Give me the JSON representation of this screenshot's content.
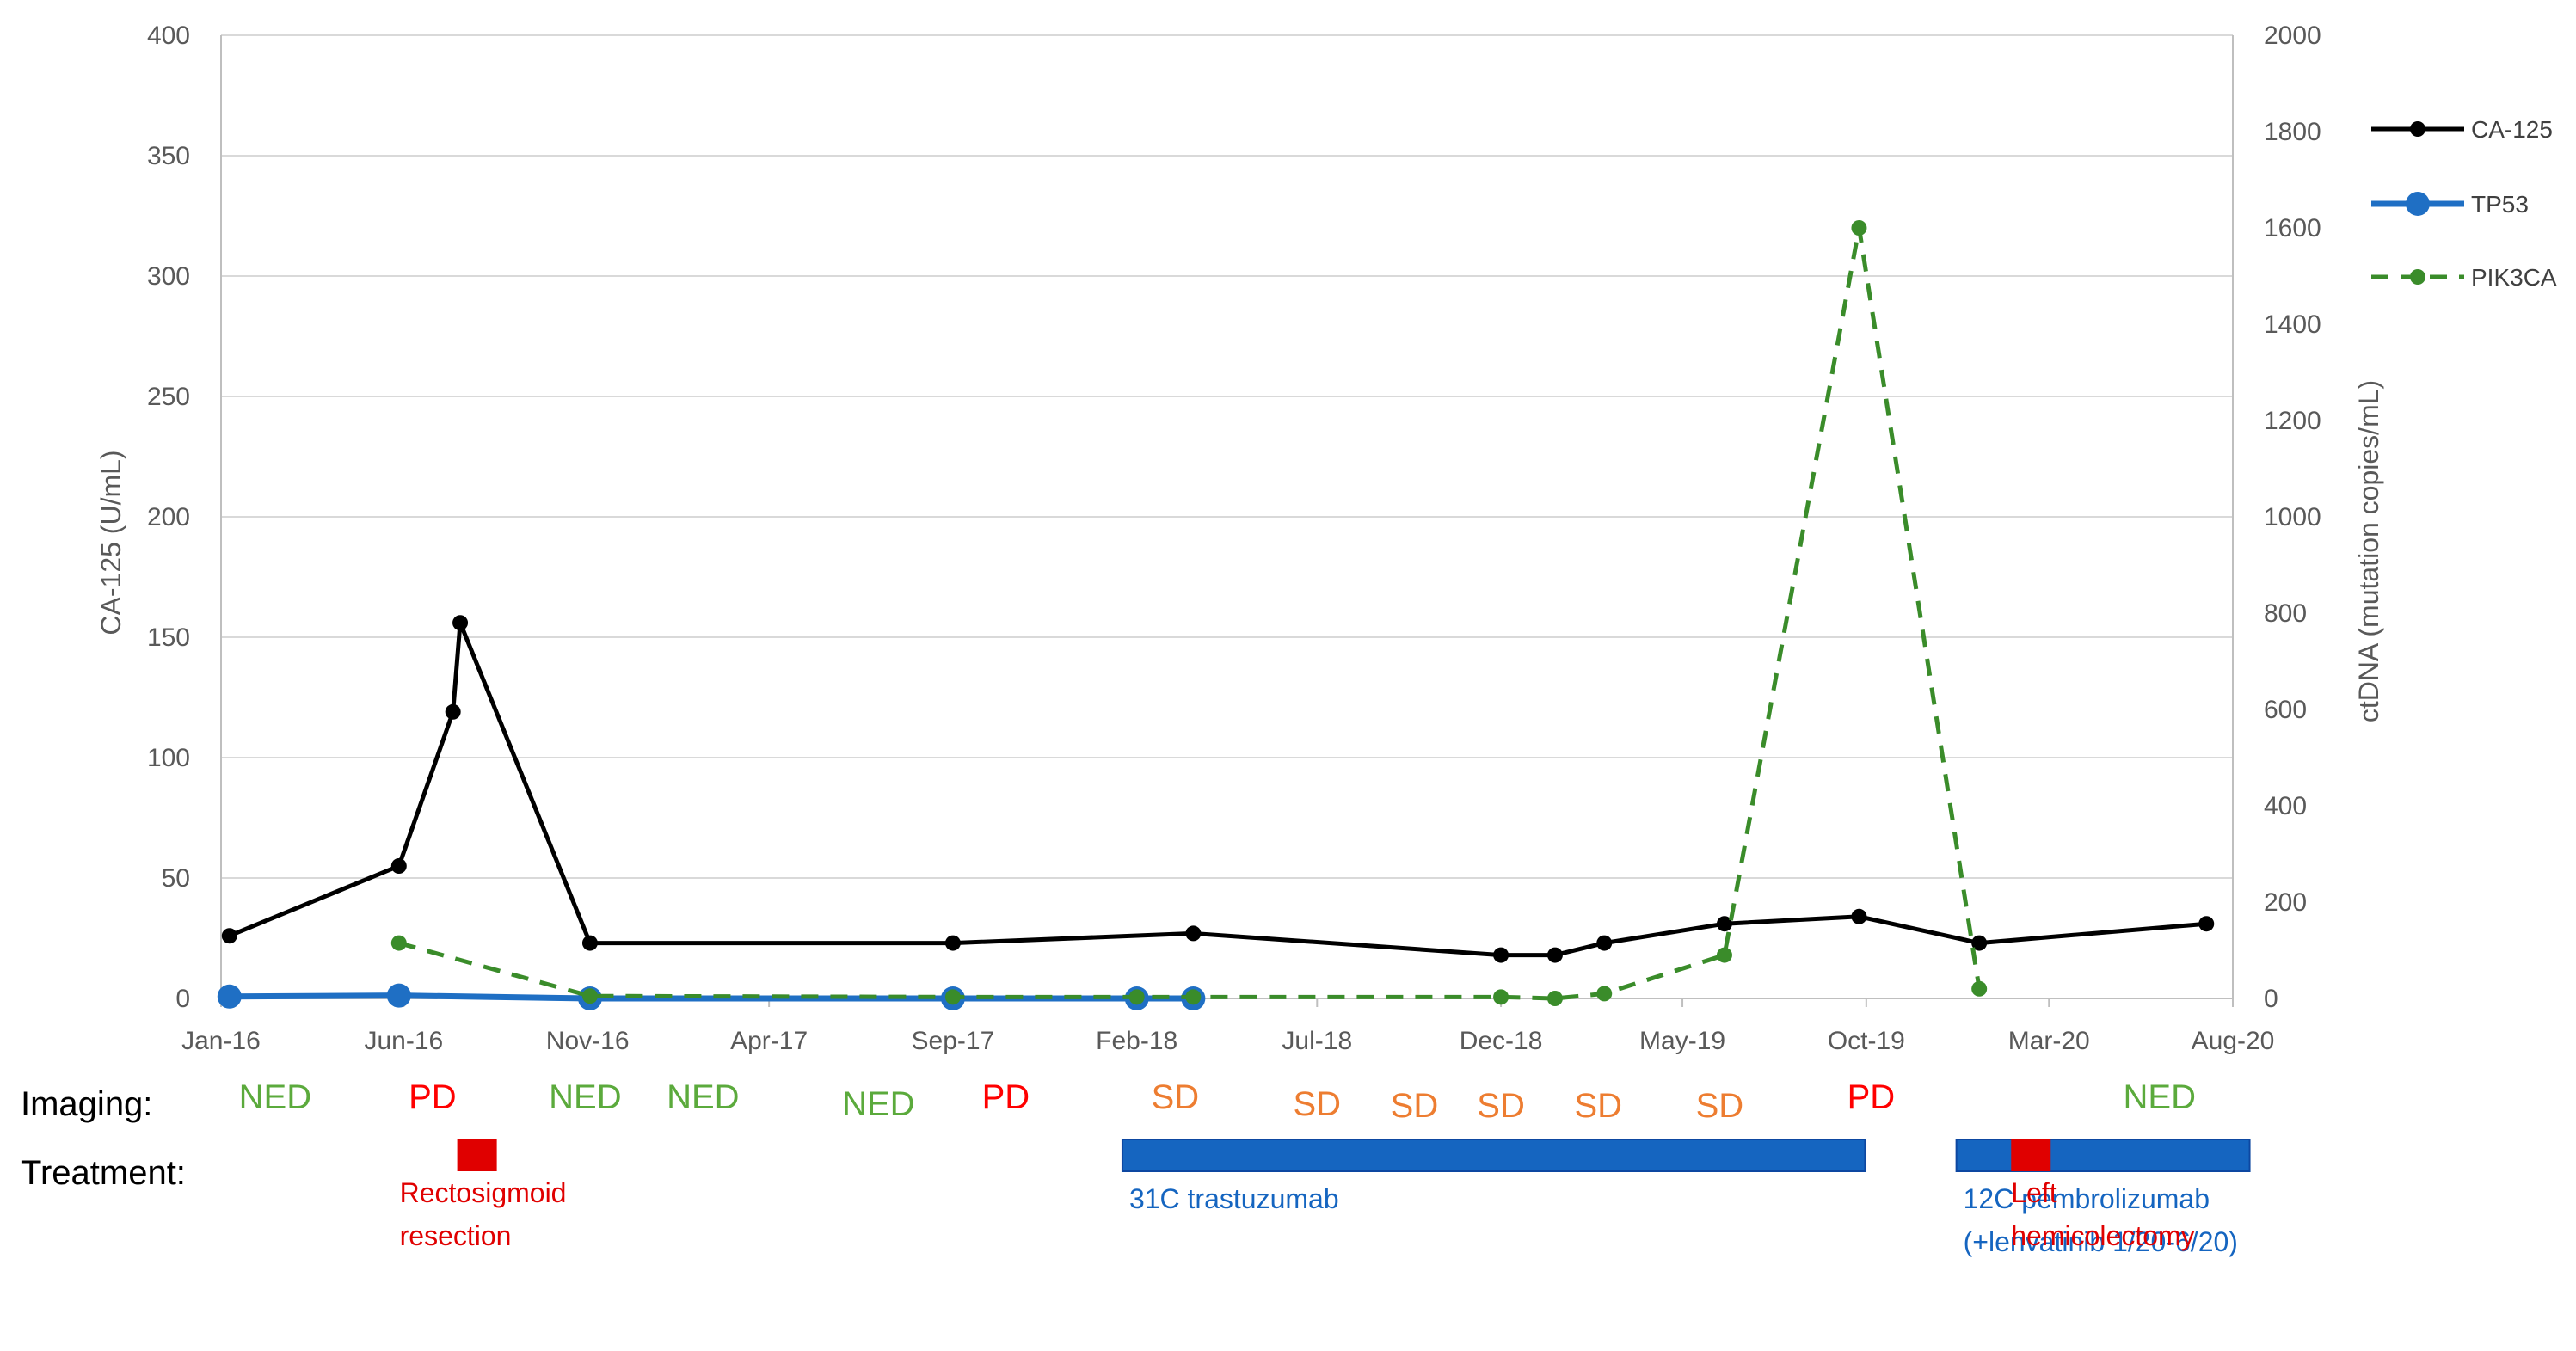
{
  "colors": {
    "ca125": "#000000",
    "tp53": "#1F6FC4",
    "pik3ca": "#3A8C2A",
    "grid": "#D9D9D9",
    "axis_text": "#595959",
    "ned": "#5BAA3C",
    "pd": "#FF0000",
    "sd": "#ED7D31",
    "treatment_bar": "#1565C0",
    "surgery": "#E00000"
  },
  "chart_data": {
    "type": "line",
    "title": "",
    "xlabel": "",
    "ylabel": "CA-125 (U/mL)",
    "y2label": "ctDNA (mutation copies/mL)",
    "ylim": [
      0,
      400
    ],
    "y2lim": [
      0,
      2000
    ],
    "yticks": [
      0,
      50,
      100,
      150,
      200,
      250,
      300,
      350,
      400
    ],
    "y2ticks": [
      0,
      200,
      400,
      600,
      800,
      1000,
      1200,
      1400,
      1600,
      1800,
      2000
    ],
    "xlim": [
      "2016-01-01",
      "2020-08-01"
    ],
    "xticks": [
      {
        "date": "2016-01-01",
        "label": "Jan-16"
      },
      {
        "date": "2016-06-01",
        "label": "Jun-16"
      },
      {
        "date": "2016-11-01",
        "label": "Nov-16"
      },
      {
        "date": "2017-04-01",
        "label": "Apr-17"
      },
      {
        "date": "2017-09-01",
        "label": "Sep-17"
      },
      {
        "date": "2018-02-01",
        "label": "Feb-18"
      },
      {
        "date": "2018-07-01",
        "label": "Jul-18"
      },
      {
        "date": "2018-12-01",
        "label": "Dec-18"
      },
      {
        "date": "2019-05-01",
        "label": "May-19"
      },
      {
        "date": "2019-10-01",
        "label": "Oct-19"
      },
      {
        "date": "2020-03-01",
        "label": "Mar-20"
      },
      {
        "date": "2020-08-01",
        "label": "Aug-20"
      }
    ],
    "grid": true,
    "legend_position": "right",
    "series": [
      {
        "name": "CA-125",
        "axis": "left",
        "style": "solid",
        "points": [
          {
            "x": "2016-01-08",
            "y": 26
          },
          {
            "x": "2016-05-28",
            "y": 55
          },
          {
            "x": "2016-07-12",
            "y": 119
          },
          {
            "x": "2016-07-18",
            "y": 156
          },
          {
            "x": "2016-11-03",
            "y": 23
          },
          {
            "x": "2017-09-01",
            "y": 23
          },
          {
            "x": "2018-03-20",
            "y": 27
          },
          {
            "x": "2018-12-01",
            "y": 18
          },
          {
            "x": "2019-01-15",
            "y": 18
          },
          {
            "x": "2019-02-25",
            "y": 23
          },
          {
            "x": "2019-06-05",
            "y": 31
          },
          {
            "x": "2019-09-25",
            "y": 34
          },
          {
            "x": "2020-01-03",
            "y": 23
          },
          {
            "x": "2020-07-10",
            "y": 31
          }
        ]
      },
      {
        "name": "TP53",
        "axis": "right",
        "style": "solid-thick",
        "points": [
          {
            "x": "2016-01-08",
            "y": 4
          },
          {
            "x": "2016-05-28",
            "y": 6
          },
          {
            "x": "2016-11-03",
            "y": 0
          },
          {
            "x": "2017-09-01",
            "y": 0
          },
          {
            "x": "2018-02-01",
            "y": 0
          },
          {
            "x": "2018-03-20",
            "y": 0
          }
        ]
      },
      {
        "name": "PIK3CA",
        "axis": "right",
        "style": "dashed",
        "points": [
          {
            "x": "2016-05-28",
            "y": 115
          },
          {
            "x": "2016-11-03",
            "y": 5
          },
          {
            "x": "2017-09-01",
            "y": 3
          },
          {
            "x": "2018-02-01",
            "y": 3
          },
          {
            "x": "2018-03-20",
            "y": 3
          },
          {
            "x": "2018-12-01",
            "y": 3
          },
          {
            "x": "2019-01-15",
            "y": 0
          },
          {
            "x": "2019-02-25",
            "y": 10
          },
          {
            "x": "2019-06-05",
            "y": 90
          },
          {
            "x": "2019-09-25",
            "y": 1600
          },
          {
            "x": "2020-01-03",
            "y": 20
          }
        ]
      }
    ]
  },
  "annotations": {
    "imaging_label": "Imaging:",
    "treatment_label": "Treatment:",
    "imaging": [
      {
        "text": "NED",
        "status": "ned",
        "x": "2016-02-15",
        "row": 0
      },
      {
        "text": "PD",
        "status": "pd",
        "x": "2016-06-25",
        "row": 0
      },
      {
        "text": "NED",
        "status": "ned",
        "x": "2016-10-30",
        "row": 0
      },
      {
        "text": "NED",
        "status": "ned",
        "x": "2017-02-05",
        "row": 0
      },
      {
        "text": "NED",
        "status": "ned",
        "x": "2017-07-01",
        "row": 1
      },
      {
        "text": "PD",
        "status": "pd",
        "x": "2017-10-15",
        "row": 0
      },
      {
        "text": "SD",
        "status": "sd",
        "x": "2018-03-05",
        "row": 0
      },
      {
        "text": "SD",
        "status": "sd",
        "x": "2018-07-01",
        "row": 1
      },
      {
        "text": "SD",
        "status": "sd",
        "x": "2018-09-20",
        "row": 2
      },
      {
        "text": "SD",
        "status": "sd",
        "x": "2018-12-01",
        "row": 2
      },
      {
        "text": "SD",
        "status": "sd",
        "x": "2019-02-20",
        "row": 2
      },
      {
        "text": "SD",
        "status": "sd",
        "x": "2019-06-01",
        "row": 2
      },
      {
        "text": "PD",
        "status": "pd",
        "x": "2019-10-05",
        "row": 0
      },
      {
        "text": "NED",
        "status": "ned",
        "x": "2020-06-01",
        "row": 0
      }
    ],
    "treatments": [
      {
        "type": "bar",
        "start": "2018-01-20",
        "end": "2019-09-30",
        "label": "31C trastuzumab"
      },
      {
        "type": "bar",
        "start": "2019-12-15",
        "end": "2020-08-15",
        "label_lines": [
          "12C pembrolizumab",
          "(+lenvatinib 1/20-6/20)"
        ]
      },
      {
        "type": "surgery",
        "at": "2016-08-01",
        "label_lines": [
          "Rectosigmoid",
          "resection"
        ]
      },
      {
        "type": "surgery",
        "at": "2020-02-15",
        "label_lines": [
          "Left",
          "hemicolectomy"
        ]
      }
    ]
  }
}
